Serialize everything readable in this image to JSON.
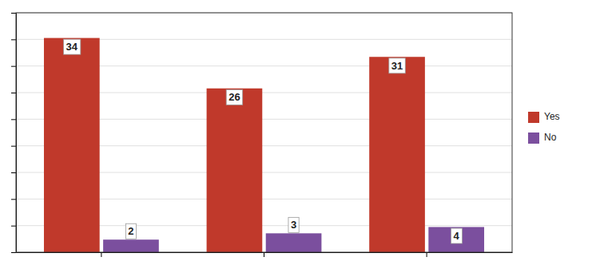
{
  "chart_data": {
    "type": "bar",
    "categories": [
      null,
      null,
      null
    ],
    "series": [
      {
        "name": "Yes",
        "color": "#C0392B",
        "values": [
          34,
          26,
          31
        ]
      },
      {
        "name": "No",
        "color": "#7B4F9E",
        "values": [
          2,
          3,
          4
        ]
      }
    ],
    "ylim": [
      0,
      38
    ],
    "yticks": [
      0,
      4.222222222222222,
      8.444444444444445,
      12.666666666666666,
      16.88888888888889,
      21.11111111111111,
      25.333333333333332,
      29.555555555555557,
      33.77777777777778,
      38
    ],
    "grid": true,
    "tick_labels": false,
    "data_labels": true,
    "legend": "right"
  }
}
